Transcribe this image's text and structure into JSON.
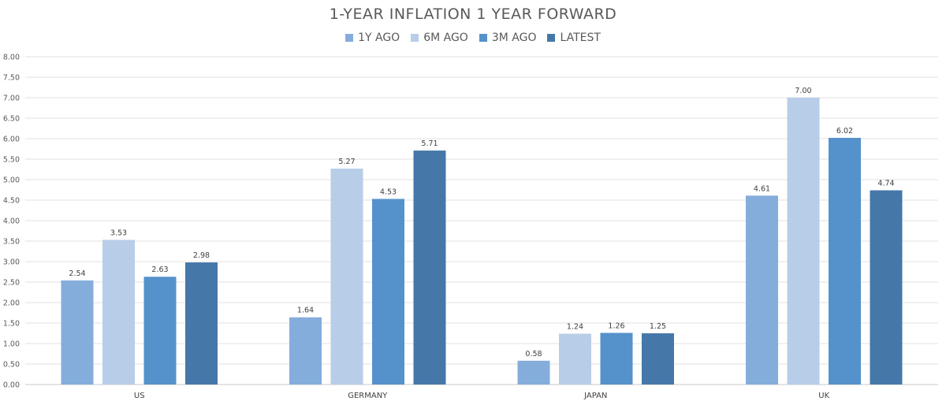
{
  "chart_data": {
    "type": "bar",
    "title": "1-YEAR INFLATION 1 YEAR FORWARD",
    "categories": [
      "US",
      "GERMANY",
      "JAPAN",
      "UK"
    ],
    "series": [
      {
        "name": "1Y AGO",
        "color": "#84ADDC",
        "values": [
          2.54,
          1.64,
          0.58,
          4.61
        ]
      },
      {
        "name": "6M AGO",
        "color": "#B8CDE8",
        "values": [
          3.53,
          5.27,
          1.24,
          7.0
        ]
      },
      {
        "name": "3M AGO",
        "color": "#5592CB",
        "values": [
          2.63,
          4.53,
          1.26,
          6.02
        ]
      },
      {
        "name": "LATEST",
        "color": "#4578A9",
        "values": [
          2.98,
          5.71,
          1.25,
          4.74
        ]
      }
    ],
    "ylim": [
      0,
      8
    ],
    "ytick_step": 0.5,
    "grid": true,
    "legend_position": "top-center"
  }
}
